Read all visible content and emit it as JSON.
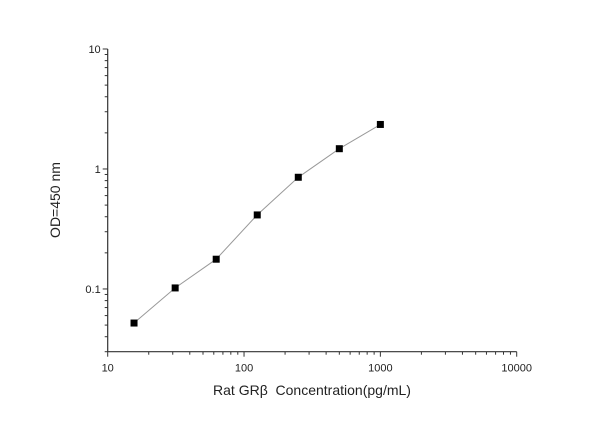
{
  "chart_data": {
    "type": "line",
    "title": "",
    "xlabel": "Rat GRβ  Concentration(pg/mL)",
    "ylabel": "OD=450 nm",
    "xscale": "log",
    "yscale": "log",
    "xlim": [
      10,
      10000
    ],
    "ylim": [
      0.03,
      10
    ],
    "xticks": [
      "10",
      "100",
      "1000",
      "10000"
    ],
    "yticks": [
      "0.1",
      "1",
      "10"
    ],
    "grid": false,
    "marker": "square",
    "colors": {
      "line": "#999999",
      "marker": "#000000",
      "axis": "#333333"
    },
    "series": [
      {
        "x": [
          15.6,
          31.25,
          62.5,
          125,
          250,
          500,
          1000
        ],
        "y": [
          0.052,
          0.102,
          0.177,
          0.414,
          0.853,
          1.476,
          2.35
        ]
      }
    ]
  }
}
